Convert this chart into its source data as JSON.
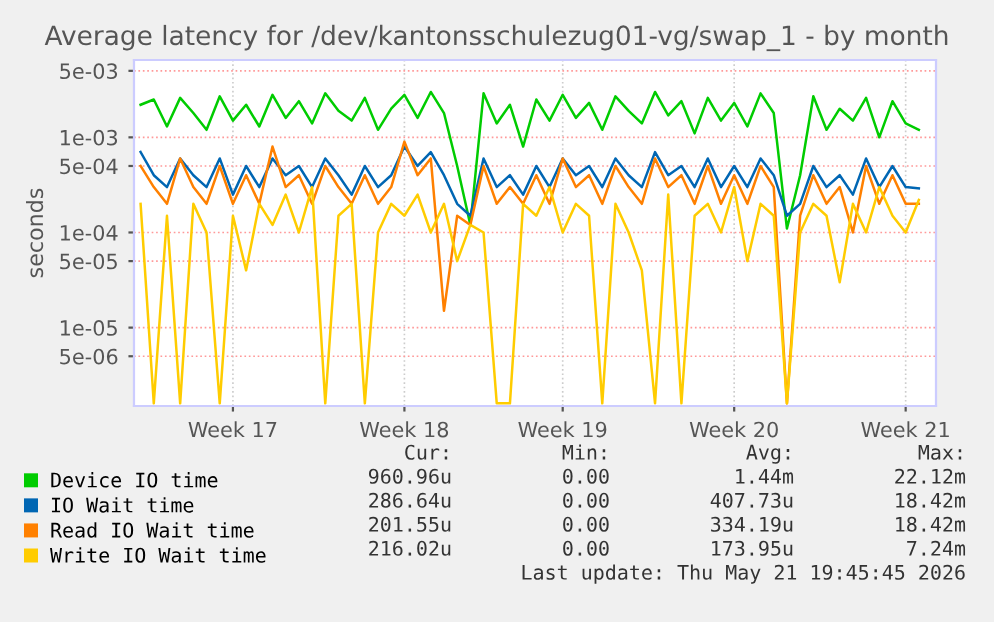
{
  "chart_data": {
    "type": "line",
    "title": "Average latency for /dev/kantonsschulezug01-vg/swap_1 - by month",
    "ylabel": "seconds",
    "log": "y",
    "grid": true,
    "legend": "bottom",
    "line_style": "solid",
    "marker": "none",
    "ylim": [
      1.5e-06,
      0.0065
    ],
    "yticks": [
      {
        "value": 5e-06,
        "label": "5e-06"
      },
      {
        "value": 1e-05,
        "label": "1e-05"
      },
      {
        "value": 5e-05,
        "label": "5e-05"
      },
      {
        "value": 0.0001,
        "label": "1e-04"
      },
      {
        "value": 0.0005,
        "label": "5e-04"
      },
      {
        "value": 0.001,
        "label": "1e-03"
      },
      {
        "value": 0.005,
        "label": "5e-03"
      }
    ],
    "categories": [
      null,
      null,
      null,
      null,
      null,
      null,
      null,
      "Week 17",
      null,
      null,
      null,
      null,
      null,
      null,
      null,
      null,
      null,
      null,
      null,
      null,
      "Week 18",
      null,
      null,
      null,
      null,
      null,
      null,
      null,
      null,
      null,
      null,
      null,
      "Week 19",
      null,
      null,
      null,
      null,
      null,
      null,
      null,
      null,
      null,
      null,
      null,
      null,
      "Week 20",
      null,
      null,
      null,
      null,
      null,
      null,
      null,
      null,
      null,
      null,
      null,
      null,
      "Week 21",
      null
    ],
    "series": [
      {
        "name": "Device IO time",
        "color": "#00cc00",
        "values": [
          0.0022,
          0.0025,
          0.0013,
          0.0026,
          0.0018,
          0.0012,
          0.0027,
          0.0015,
          0.0022,
          0.0013,
          0.0028,
          0.0016,
          0.0024,
          0.0014,
          0.0029,
          0.0019,
          0.0015,
          0.0026,
          0.0012,
          0.002,
          0.0028,
          0.0016,
          0.003,
          0.0018,
          0.0005,
          0.00012,
          0.0029,
          0.0014,
          0.0022,
          0.0008,
          0.0025,
          0.0015,
          0.0028,
          0.0016,
          0.0023,
          0.0012,
          0.0027,
          0.0019,
          0.0014,
          0.003,
          0.0017,
          0.0024,
          0.0011,
          0.0026,
          0.0015,
          0.0023,
          0.0013,
          0.0029,
          0.0018,
          0.00011,
          0.0004,
          0.0027,
          0.0012,
          0.002,
          0.0015,
          0.0026,
          0.001,
          0.0024,
          0.0014,
          0.0012
        ]
      },
      {
        "name": "IO Wait time",
        "color": "#0066b3",
        "values": [
          0.0007,
          0.0004,
          0.0003,
          0.0006,
          0.0004,
          0.0003,
          0.0006,
          0.00025,
          0.0005,
          0.0003,
          0.0006,
          0.0004,
          0.0005,
          0.0003,
          0.0006,
          0.0004,
          0.00025,
          0.0005,
          0.0003,
          0.0004,
          0.0008,
          0.0005,
          0.0007,
          0.0004,
          0.0002,
          0.00015,
          0.0006,
          0.0003,
          0.0004,
          0.00025,
          0.0005,
          0.0003,
          0.0006,
          0.0004,
          0.0005,
          0.0003,
          0.0006,
          0.0004,
          0.0003,
          0.0007,
          0.0004,
          0.0005,
          0.0003,
          0.0006,
          0.0003,
          0.0005,
          0.0003,
          0.0006,
          0.0004,
          0.00015,
          0.0002,
          0.0005,
          0.0003,
          0.0004,
          0.00025,
          0.0006,
          0.0003,
          0.0005,
          0.0003,
          0.00029
        ]
      },
      {
        "name": "Read IO Wait time",
        "color": "#ff8000",
        "values": [
          0.0005,
          0.0003,
          0.0002,
          0.0006,
          0.0003,
          0.0002,
          0.0005,
          0.0002,
          0.0004,
          0.0002,
          0.0008,
          0.0003,
          0.0004,
          0.0002,
          0.0005,
          0.0003,
          0.0002,
          0.0004,
          0.0002,
          0.0003,
          0.0009,
          0.0004,
          0.0006,
          1.5e-05,
          0.00015,
          0.00012,
          0.0005,
          0.0002,
          0.0003,
          0.0002,
          0.0004,
          0.0002,
          0.0006,
          0.0003,
          0.0004,
          0.0002,
          0.0005,
          0.0003,
          0.0002,
          0.0006,
          0.0003,
          0.0004,
          0.0002,
          0.0005,
          0.0002,
          0.0004,
          0.0002,
          0.0005,
          0.0003,
          1.6e-06,
          0.00015,
          0.0004,
          0.0002,
          0.0003,
          0.0001,
          0.0005,
          0.0002,
          0.0004,
          0.0002,
          0.0002
        ]
      },
      {
        "name": "Write IO Wait time",
        "color": "#ffcc00",
        "values": [
          0.0002,
          1.6e-06,
          0.00015,
          1.6e-06,
          0.0002,
          0.0001,
          1.6e-06,
          0.00015,
          4e-05,
          0.0002,
          0.00012,
          0.00025,
          0.0001,
          0.0003,
          1.6e-06,
          0.00015,
          0.0002,
          1.6e-06,
          0.0001,
          0.0002,
          0.00015,
          0.00025,
          0.0001,
          0.0002,
          5e-05,
          0.00012,
          0.0001,
          1.6e-06,
          1.6e-06,
          0.0002,
          0.00015,
          0.0003,
          0.0001,
          0.0002,
          0.00015,
          1.6e-06,
          0.0002,
          0.0001,
          4e-05,
          1.6e-06,
          0.00025,
          1.6e-06,
          0.00015,
          0.0002,
          0.0001,
          0.0003,
          5e-05,
          0.0002,
          0.00015,
          1.6e-06,
          0.0001,
          0.0002,
          0.00015,
          3e-05,
          0.0002,
          0.0001,
          0.0003,
          0.00015,
          0.0001,
          0.00022
        ]
      }
    ],
    "annotations": [
      "Cur:",
      "Min:",
      "Avg:",
      "Max:",
      "960.96u",
      "0.00",
      "1.44m",
      "22.12m",
      "286.64u",
      "0.00",
      "407.73u",
      "18.42m",
      "201.55u",
      "0.00",
      "334.19u",
      "18.42m",
      "216.02u",
      "0.00",
      "173.95u",
      "7.24m",
      "Last update: Thu May 21 19:45:45 2026"
    ]
  }
}
